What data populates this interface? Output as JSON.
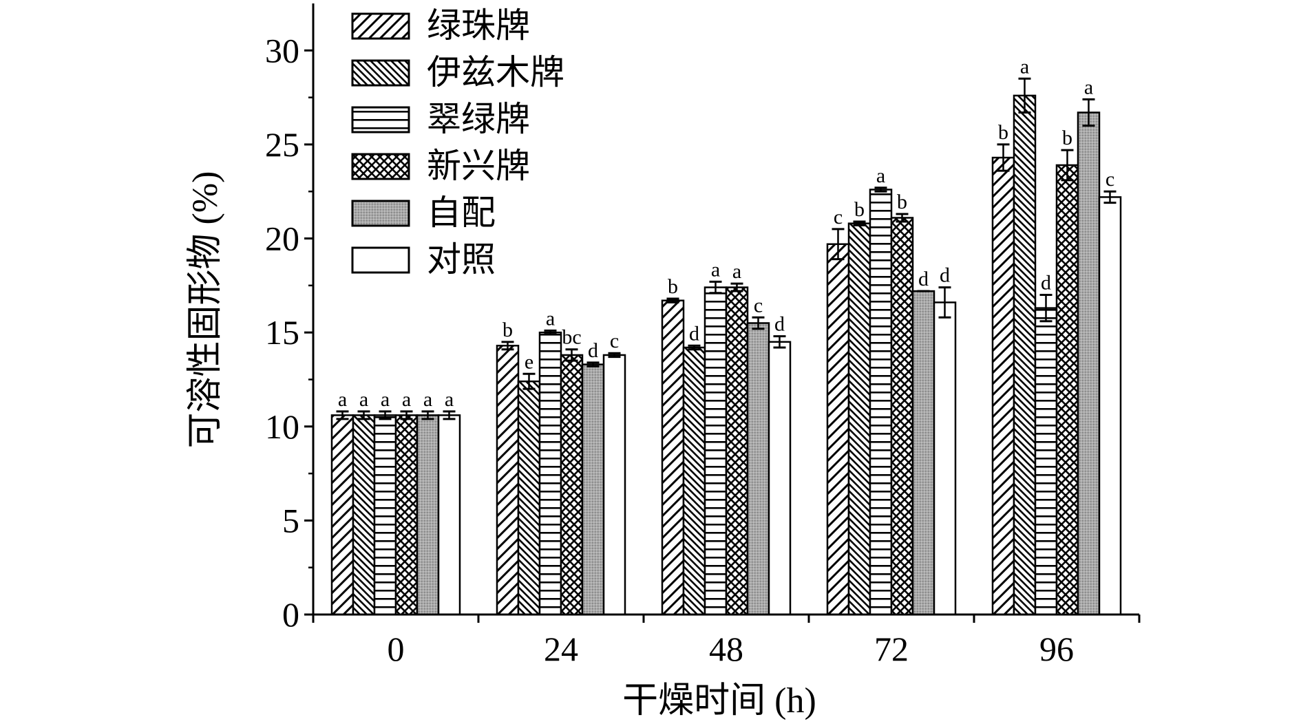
{
  "chart_data": {
    "type": "bar",
    "xlabel": "干燥时间 (h)",
    "ylabel": "可溶性固形物 (%)",
    "ylim": [
      0,
      32.5
    ],
    "yticks": [
      "0",
      "5",
      "10",
      "15",
      "20",
      "25",
      "30"
    ],
    "categories": [
      "0",
      "24",
      "48",
      "72",
      "96"
    ],
    "legend_position": "top-left",
    "series": [
      {
        "name": "绿珠牌",
        "pattern": "diag-forward",
        "values": [
          10.6,
          14.3,
          16.7,
          19.7,
          24.3
        ],
        "errors": [
          0.2,
          0.2,
          0.1,
          0.8,
          0.7
        ],
        "letters": [
          "a",
          "b",
          "b",
          "c",
          "b"
        ]
      },
      {
        "name": "伊兹木牌",
        "pattern": "diag-back",
        "values": [
          10.6,
          12.4,
          14.2,
          20.8,
          27.6
        ],
        "errors": [
          0.2,
          0.4,
          0.1,
          0.1,
          0.9
        ],
        "letters": [
          "a",
          "e",
          "d",
          "b",
          "a"
        ]
      },
      {
        "name": "翠绿牌",
        "pattern": "horizontal",
        "values": [
          10.6,
          15.0,
          17.4,
          22.6,
          16.3
        ],
        "errors": [
          0.2,
          0.1,
          0.3,
          0.1,
          0.7
        ],
        "letters": [
          "a",
          "a",
          "a",
          "a",
          "d"
        ]
      },
      {
        "name": "新兴牌",
        "pattern": "crosshatch",
        "values": [
          10.6,
          13.8,
          17.4,
          21.1,
          23.9
        ],
        "errors": [
          0.2,
          0.3,
          0.2,
          0.2,
          0.8
        ],
        "letters": [
          "a",
          "bc",
          "a",
          "b",
          "b"
        ]
      },
      {
        "name": "自配",
        "pattern": "gray-stipple",
        "values": [
          10.6,
          13.3,
          15.5,
          17.2,
          26.7
        ],
        "errors": [
          0.2,
          0.1,
          0.3,
          0.0,
          0.7
        ],
        "letters": [
          "a",
          "d",
          "c",
          "d",
          "a"
        ]
      },
      {
        "name": "对照",
        "pattern": "white",
        "values": [
          10.6,
          13.8,
          14.5,
          16.6,
          22.2
        ],
        "errors": [
          0.2,
          0.1,
          0.3,
          0.8,
          0.3
        ],
        "letters": [
          "a",
          "c",
          "d",
          "d",
          "c"
        ]
      }
    ]
  }
}
